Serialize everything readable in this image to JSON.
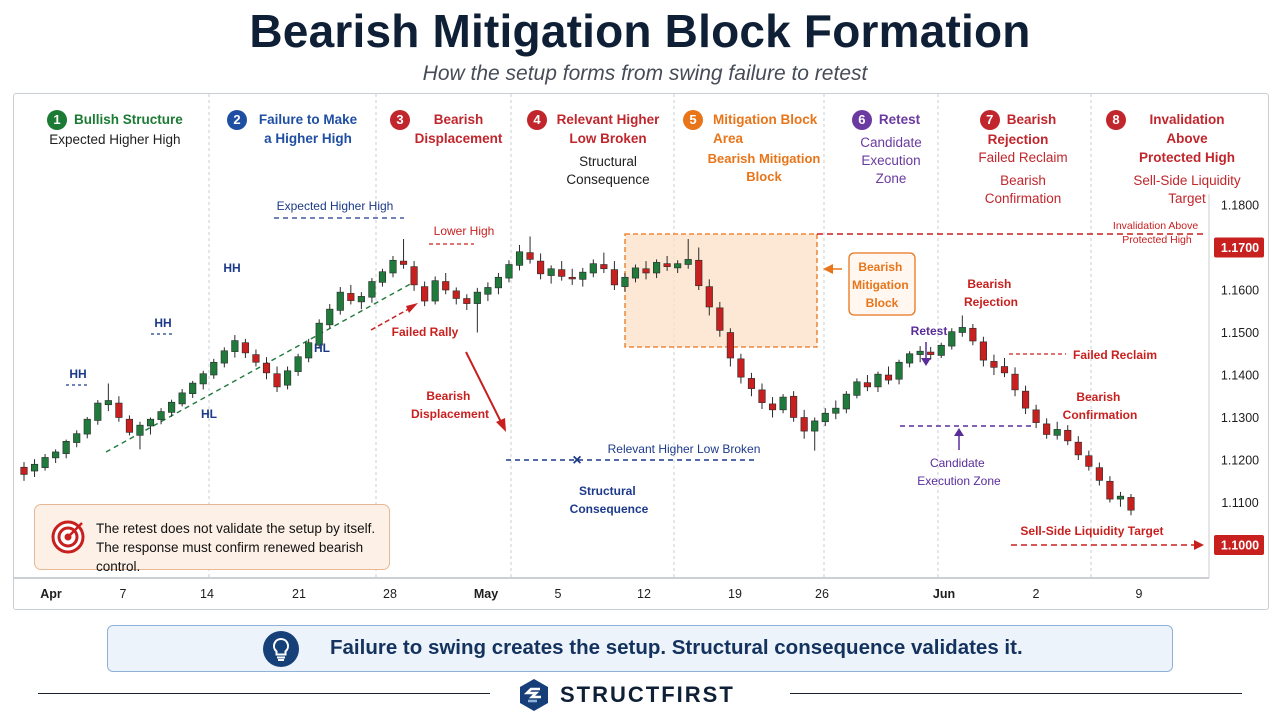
{
  "title": "Bearish Mitigation Block Formation",
  "subtitle": "How the setup forms from swing failure to retest",
  "stages": [
    {
      "num": "1",
      "title": "Bullish Structure",
      "subtitle": "Expected Higher High",
      "color": "#1b7a34"
    },
    {
      "num": "2",
      "title": "Failure to Make a Higher High",
      "subtitle": "",
      "color": "#1f4fa3"
    },
    {
      "num": "3",
      "title": "Bearish Displacement",
      "subtitle": "",
      "color": "#c0262c"
    },
    {
      "num": "4",
      "title": "Relevant Higher Low Broken",
      "subtitle": "Structural Consequence",
      "color": "#c0262c"
    },
    {
      "num": "5",
      "title": "Mitigation Block Area",
      "subtitle": "Bearish Mitigation Block",
      "color": "#e8751a"
    },
    {
      "num": "6",
      "title": "Retest",
      "subtitle": "Candidate Execution Zone",
      "color": "#6a3aa0"
    },
    {
      "num": "7",
      "title": "Bearish Rejection",
      "subtitle": "Failed Reclaim",
      "subtitle2": "Bearish Confirmation",
      "color": "#c0262c"
    },
    {
      "num": "8",
      "title": "Invalidation Above Protected High",
      "subtitle": "Sell-Side Liquidity Target",
      "color": "#c0262c"
    }
  ],
  "annotations": {
    "hh": "HH",
    "hl": "HL",
    "expected_hh": "Expected Higher High",
    "lower_high": "Lower High",
    "failed_rally": "Failed Rally",
    "bearish_displacement": "Bearish Displacement",
    "relevant_hl_broken": "Relevant Higher Low Broken",
    "structural_consequence": "Structural Consequence",
    "mitigation_block": "Bearish Mitigation Block",
    "retest": "Retest",
    "bearish_rejection": "Bearish Rejection",
    "failed_reclaim": "Failed Reclaim",
    "bearish_confirmation": "Bearish Confirmation",
    "candidate_zone": "Candidate Execution Zone",
    "invalidation": "Invalidation Above Protected High",
    "ssl_target": "Sell-Side Liquidity Target"
  },
  "callout": {
    "line1": "The retest does not validate the setup by itself.",
    "line2": "The response must confirm renewed bearish control."
  },
  "banner": "Failure to swing creates the setup. Structural consequence validates it.",
  "brand": "STRUCTFIRST",
  "colors": {
    "bull": "#1f7a3c",
    "bear": "#c8201f",
    "zone": "#e8751a",
    "hl_line": "#1f7a3c",
    "level": "#1d3a8a"
  },
  "chart_data": {
    "type": "candlestick",
    "x_labels": [
      "Apr",
      "7",
      "14",
      "21",
      "28",
      "May",
      "5",
      "12",
      "19",
      "26",
      "Jun",
      "2",
      "9"
    ],
    "y_ticks": [
      "1.1800",
      "1.1700",
      "1.1600",
      "1.1500",
      "1.1400",
      "1.1300",
      "1.1200",
      "1.1100",
      "1.1000"
    ],
    "ylim": [
      1.09,
      1.182
    ],
    "highlight_levels": {
      "invalidation": "1.1700",
      "target": "1.1000"
    },
    "candles": [
      {
        "o": 1.1183,
        "h": 1.1195,
        "l": 1.1151,
        "c": 1.1166
      },
      {
        "o": 1.1174,
        "h": 1.1202,
        "l": 1.116,
        "c": 1.119
      },
      {
        "o": 1.1182,
        "h": 1.1214,
        "l": 1.1175,
        "c": 1.1206
      },
      {
        "o": 1.1205,
        "h": 1.1225,
        "l": 1.1193,
        "c": 1.1219
      },
      {
        "o": 1.1215,
        "h": 1.1248,
        "l": 1.1204,
        "c": 1.1244
      },
      {
        "o": 1.1241,
        "h": 1.127,
        "l": 1.123,
        "c": 1.1262
      },
      {
        "o": 1.1261,
        "h": 1.1301,
        "l": 1.1251,
        "c": 1.1296
      },
      {
        "o": 1.1293,
        "h": 1.1341,
        "l": 1.1283,
        "c": 1.1334
      },
      {
        "o": 1.133,
        "h": 1.138,
        "l": 1.1315,
        "c": 1.134
      },
      {
        "o": 1.1334,
        "h": 1.135,
        "l": 1.129,
        "c": 1.13
      },
      {
        "o": 1.1296,
        "h": 1.1305,
        "l": 1.1258,
        "c": 1.1265
      },
      {
        "o": 1.1258,
        "h": 1.129,
        "l": 1.1225,
        "c": 1.1282
      },
      {
        "o": 1.128,
        "h": 1.13,
        "l": 1.126,
        "c": 1.1296
      },
      {
        "o": 1.1295,
        "h": 1.1322,
        "l": 1.1284,
        "c": 1.1314
      },
      {
        "o": 1.1312,
        "h": 1.1342,
        "l": 1.1302,
        "c": 1.1336
      },
      {
        "o": 1.1332,
        "h": 1.1367,
        "l": 1.1326,
        "c": 1.1358
      },
      {
        "o": 1.1356,
        "h": 1.1386,
        "l": 1.1346,
        "c": 1.1381
      },
      {
        "o": 1.1379,
        "h": 1.141,
        "l": 1.1366,
        "c": 1.1403
      },
      {
        "o": 1.14,
        "h": 1.1438,
        "l": 1.1391,
        "c": 1.143
      },
      {
        "o": 1.1428,
        "h": 1.1465,
        "l": 1.1418,
        "c": 1.1457
      },
      {
        "o": 1.1455,
        "h": 1.1494,
        "l": 1.1441,
        "c": 1.1481
      },
      {
        "o": 1.1476,
        "h": 1.1485,
        "l": 1.144,
        "c": 1.1452
      },
      {
        "o": 1.1448,
        "h": 1.146,
        "l": 1.142,
        "c": 1.143
      },
      {
        "o": 1.1428,
        "h": 1.1442,
        "l": 1.139,
        "c": 1.1405
      },
      {
        "o": 1.1403,
        "h": 1.142,
        "l": 1.136,
        "c": 1.1372
      },
      {
        "o": 1.1376,
        "h": 1.142,
        "l": 1.1366,
        "c": 1.141
      },
      {
        "o": 1.1408,
        "h": 1.145,
        "l": 1.1398,
        "c": 1.1443
      },
      {
        "o": 1.144,
        "h": 1.1485,
        "l": 1.143,
        "c": 1.1476
      },
      {
        "o": 1.147,
        "h": 1.1531,
        "l": 1.1462,
        "c": 1.1522
      },
      {
        "o": 1.1518,
        "h": 1.1567,
        "l": 1.151,
        "c": 1.1555
      },
      {
        "o": 1.1552,
        "h": 1.1607,
        "l": 1.1542,
        "c": 1.1595
      },
      {
        "o": 1.1592,
        "h": 1.1612,
        "l": 1.1566,
        "c": 1.1575
      },
      {
        "o": 1.1572,
        "h": 1.1595,
        "l": 1.1555,
        "c": 1.1585
      },
      {
        "o": 1.1583,
        "h": 1.1628,
        "l": 1.157,
        "c": 1.162
      },
      {
        "o": 1.1618,
        "h": 1.165,
        "l": 1.1608,
        "c": 1.1643
      },
      {
        "o": 1.164,
        "h": 1.168,
        "l": 1.163,
        "c": 1.167
      },
      {
        "o": 1.1668,
        "h": 1.172,
        "l": 1.165,
        "c": 1.166
      },
      {
        "o": 1.1655,
        "h": 1.1668,
        "l": 1.1598,
        "c": 1.1612
      },
      {
        "o": 1.1608,
        "h": 1.162,
        "l": 1.1562,
        "c": 1.1574
      },
      {
        "o": 1.1574,
        "h": 1.1632,
        "l": 1.1566,
        "c": 1.1622
      },
      {
        "o": 1.162,
        "h": 1.164,
        "l": 1.159,
        "c": 1.16
      },
      {
        "o": 1.1598,
        "h": 1.1606,
        "l": 1.1566,
        "c": 1.158
      },
      {
        "o": 1.158,
        "h": 1.159,
        "l": 1.1553,
        "c": 1.1568
      },
      {
        "o": 1.1568,
        "h": 1.1605,
        "l": 1.15,
        "c": 1.1595
      },
      {
        "o": 1.159,
        "h": 1.1618,
        "l": 1.1574,
        "c": 1.1606
      },
      {
        "o": 1.1605,
        "h": 1.164,
        "l": 1.159,
        "c": 1.163
      },
      {
        "o": 1.1628,
        "h": 1.167,
        "l": 1.1618,
        "c": 1.166
      },
      {
        "o": 1.1658,
        "h": 1.1706,
        "l": 1.1646,
        "c": 1.169
      },
      {
        "o": 1.1688,
        "h": 1.1726,
        "l": 1.1662,
        "c": 1.1672
      },
      {
        "o": 1.1668,
        "h": 1.1686,
        "l": 1.1625,
        "c": 1.1638
      },
      {
        "o": 1.1634,
        "h": 1.1658,
        "l": 1.1615,
        "c": 1.165
      },
      {
        "o": 1.1648,
        "h": 1.1668,
        "l": 1.1622,
        "c": 1.1632
      },
      {
        "o": 1.163,
        "h": 1.165,
        "l": 1.1612,
        "c": 1.1626
      },
      {
        "o": 1.1625,
        "h": 1.1652,
        "l": 1.1608,
        "c": 1.1642
      },
      {
        "o": 1.164,
        "h": 1.1672,
        "l": 1.163,
        "c": 1.1662
      },
      {
        "o": 1.166,
        "h": 1.1688,
        "l": 1.164,
        "c": 1.165
      },
      {
        "o": 1.1648,
        "h": 1.1668,
        "l": 1.16,
        "c": 1.1612
      },
      {
        "o": 1.1608,
        "h": 1.164,
        "l": 1.1596,
        "c": 1.163
      },
      {
        "o": 1.1628,
        "h": 1.166,
        "l": 1.1618,
        "c": 1.1652
      },
      {
        "o": 1.165,
        "h": 1.1668,
        "l": 1.1625,
        "c": 1.164
      },
      {
        "o": 1.164,
        "h": 1.1672,
        "l": 1.1628,
        "c": 1.1665
      },
      {
        "o": 1.1662,
        "h": 1.168,
        "l": 1.1645,
        "c": 1.1655
      },
      {
        "o": 1.1652,
        "h": 1.167,
        "l": 1.164,
        "c": 1.1662
      },
      {
        "o": 1.166,
        "h": 1.172,
        "l": 1.165,
        "c": 1.1672
      },
      {
        "o": 1.167,
        "h": 1.17,
        "l": 1.16,
        "c": 1.161
      },
      {
        "o": 1.1608,
        "h": 1.1625,
        "l": 1.154,
        "c": 1.156
      },
      {
        "o": 1.1558,
        "h": 1.1572,
        "l": 1.149,
        "c": 1.1505
      },
      {
        "o": 1.15,
        "h": 1.151,
        "l": 1.142,
        "c": 1.144
      },
      {
        "o": 1.1438,
        "h": 1.145,
        "l": 1.138,
        "c": 1.1395
      },
      {
        "o": 1.1392,
        "h": 1.1405,
        "l": 1.135,
        "c": 1.1368
      },
      {
        "o": 1.1365,
        "h": 1.138,
        "l": 1.132,
        "c": 1.1335
      },
      {
        "o": 1.1332,
        "h": 1.1348,
        "l": 1.13,
        "c": 1.1318
      },
      {
        "o": 1.1318,
        "h": 1.1355,
        "l": 1.131,
        "c": 1.1348
      },
      {
        "o": 1.135,
        "h": 1.1362,
        "l": 1.129,
        "c": 1.13
      },
      {
        "o": 1.13,
        "h": 1.1318,
        "l": 1.125,
        "c": 1.1268
      },
      {
        "o": 1.1268,
        "h": 1.13,
        "l": 1.1222,
        "c": 1.1292
      },
      {
        "o": 1.129,
        "h": 1.1322,
        "l": 1.128,
        "c": 1.131
      },
      {
        "o": 1.131,
        "h": 1.134,
        "l": 1.1296,
        "c": 1.1322
      },
      {
        "o": 1.132,
        "h": 1.1362,
        "l": 1.131,
        "c": 1.1355
      },
      {
        "o": 1.1352,
        "h": 1.1392,
        "l": 1.1345,
        "c": 1.1384
      },
      {
        "o": 1.1382,
        "h": 1.14,
        "l": 1.1362,
        "c": 1.1372
      },
      {
        "o": 1.1372,
        "h": 1.1408,
        "l": 1.136,
        "c": 1.1402
      },
      {
        "o": 1.14,
        "h": 1.142,
        "l": 1.1378,
        "c": 1.1388
      },
      {
        "o": 1.139,
        "h": 1.1436,
        "l": 1.1378,
        "c": 1.143
      },
      {
        "o": 1.1428,
        "h": 1.1456,
        "l": 1.1418,
        "c": 1.145
      },
      {
        "o": 1.1448,
        "h": 1.1468,
        "l": 1.143,
        "c": 1.1456
      },
      {
        "o": 1.1454,
        "h": 1.1466,
        "l": 1.1436,
        "c": 1.1448
      },
      {
        "o": 1.1446,
        "h": 1.1476,
        "l": 1.144,
        "c": 1.147
      },
      {
        "o": 1.1468,
        "h": 1.151,
        "l": 1.146,
        "c": 1.1502
      },
      {
        "o": 1.15,
        "h": 1.154,
        "l": 1.149,
        "c": 1.1512
      },
      {
        "o": 1.151,
        "h": 1.152,
        "l": 1.147,
        "c": 1.148
      },
      {
        "o": 1.1478,
        "h": 1.149,
        "l": 1.142,
        "c": 1.1435
      },
      {
        "o": 1.1432,
        "h": 1.1448,
        "l": 1.14,
        "c": 1.1418
      },
      {
        "o": 1.142,
        "h": 1.144,
        "l": 1.1395,
        "c": 1.1405
      },
      {
        "o": 1.1402,
        "h": 1.1418,
        "l": 1.135,
        "c": 1.1365
      },
      {
        "o": 1.1362,
        "h": 1.1375,
        "l": 1.1308,
        "c": 1.1322
      },
      {
        "o": 1.1318,
        "h": 1.133,
        "l": 1.1275,
        "c": 1.1288
      },
      {
        "o": 1.1285,
        "h": 1.1298,
        "l": 1.125,
        "c": 1.126
      },
      {
        "o": 1.1258,
        "h": 1.129,
        "l": 1.1248,
        "c": 1.1272
      },
      {
        "o": 1.127,
        "h": 1.1282,
        "l": 1.1235,
        "c": 1.1245
      },
      {
        "o": 1.1242,
        "h": 1.1256,
        "l": 1.12,
        "c": 1.1212
      },
      {
        "o": 1.121,
        "h": 1.1222,
        "l": 1.1175,
        "c": 1.1185
      },
      {
        "o": 1.1182,
        "h": 1.1194,
        "l": 1.114,
        "c": 1.1152
      },
      {
        "o": 1.115,
        "h": 1.1162,
        "l": 1.11,
        "c": 1.1108
      },
      {
        "o": 1.1108,
        "h": 1.1125,
        "l": 1.109,
        "c": 1.1115
      },
      {
        "o": 1.1112,
        "h": 1.112,
        "l": 1.107,
        "c": 1.1082
      }
    ]
  }
}
